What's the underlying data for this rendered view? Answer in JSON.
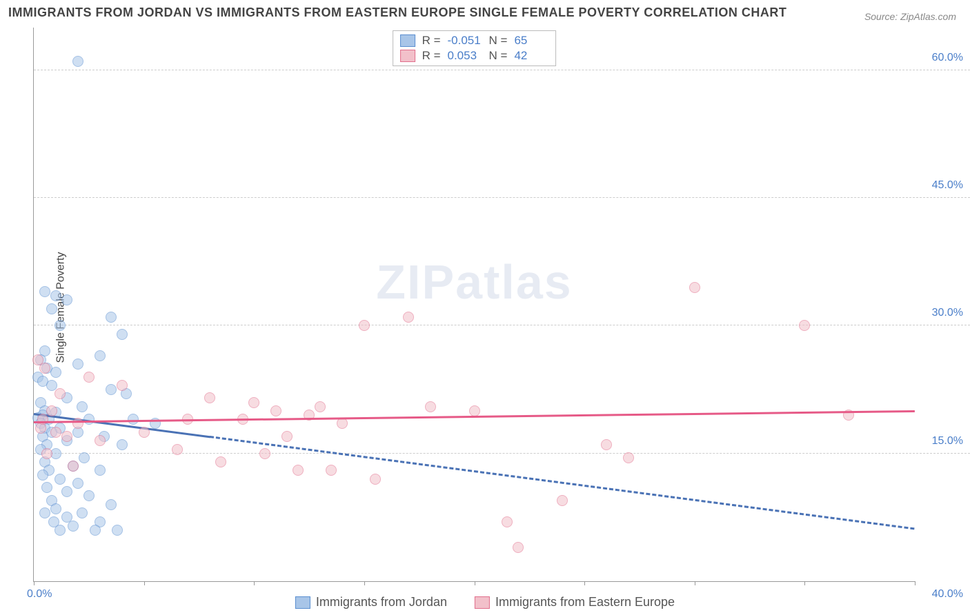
{
  "title": "IMMIGRANTS FROM JORDAN VS IMMIGRANTS FROM EASTERN EUROPE SINGLE FEMALE POVERTY CORRELATION CHART",
  "source": "Source: ZipAtlas.com",
  "ylabel": "Single Female Poverty",
  "watermark": "ZIPatlas",
  "chart": {
    "type": "scatter",
    "xlim": [
      0,
      40
    ],
    "ylim": [
      0,
      65
    ],
    "x_axis_labels": {
      "min": "0.0%",
      "max": "40.0%"
    },
    "y_grid": [
      {
        "val": 15,
        "label": "15.0%"
      },
      {
        "val": 30,
        "label": "30.0%"
      },
      {
        "val": 45,
        "label": "45.0%"
      },
      {
        "val": 60,
        "label": "60.0%"
      }
    ],
    "x_ticks": [
      0,
      5,
      10,
      15,
      20,
      25,
      30,
      35,
      40
    ],
    "background_color": "#ffffff",
    "grid_color": "#cccccc",
    "marker_radius": 8,
    "marker_opacity": 0.55,
    "series": [
      {
        "name": "Immigrants from Jordan",
        "color_fill": "#a8c5e8",
        "color_stroke": "#5b8fd0",
        "r_value": "-0.051",
        "n_value": "65",
        "trend": {
          "y_at_xmin": 19.5,
          "y_at_xmax": 6.0,
          "solid_until_x": 8,
          "color": "#4a72b5",
          "width": 3
        },
        "points": [
          [
            2.0,
            61.0
          ],
          [
            0.5,
            34.0
          ],
          [
            1.0,
            33.5
          ],
          [
            1.5,
            33.0
          ],
          [
            0.8,
            32.0
          ],
          [
            3.5,
            31.0
          ],
          [
            1.2,
            30.0
          ],
          [
            4.0,
            29.0
          ],
          [
            0.5,
            27.0
          ],
          [
            3.0,
            26.5
          ],
          [
            0.3,
            26.0
          ],
          [
            2.0,
            25.5
          ],
          [
            0.6,
            25.0
          ],
          [
            1.0,
            24.5
          ],
          [
            0.2,
            24.0
          ],
          [
            0.4,
            23.5
          ],
          [
            0.8,
            23.0
          ],
          [
            3.5,
            22.5
          ],
          [
            4.2,
            22.0
          ],
          [
            1.5,
            21.5
          ],
          [
            0.3,
            21.0
          ],
          [
            2.2,
            20.5
          ],
          [
            0.5,
            20.0
          ],
          [
            1.0,
            19.8
          ],
          [
            0.4,
            19.5
          ],
          [
            0.2,
            19.2
          ],
          [
            0.7,
            19.0
          ],
          [
            2.5,
            19.0
          ],
          [
            4.5,
            19.0
          ],
          [
            5.5,
            18.5
          ],
          [
            0.3,
            18.5
          ],
          [
            1.2,
            18.0
          ],
          [
            0.5,
            18.0
          ],
          [
            0.8,
            17.5
          ],
          [
            2.0,
            17.5
          ],
          [
            3.2,
            17.0
          ],
          [
            0.4,
            17.0
          ],
          [
            1.5,
            16.5
          ],
          [
            0.6,
            16.0
          ],
          [
            4.0,
            16.0
          ],
          [
            0.3,
            15.5
          ],
          [
            1.0,
            15.0
          ],
          [
            2.3,
            14.5
          ],
          [
            0.5,
            14.0
          ],
          [
            1.8,
            13.5
          ],
          [
            0.7,
            13.0
          ],
          [
            3.0,
            13.0
          ],
          [
            0.4,
            12.5
          ],
          [
            1.2,
            12.0
          ],
          [
            2.0,
            11.5
          ],
          [
            0.6,
            11.0
          ],
          [
            1.5,
            10.5
          ],
          [
            2.5,
            10.0
          ],
          [
            0.8,
            9.5
          ],
          [
            3.5,
            9.0
          ],
          [
            1.0,
            8.5
          ],
          [
            0.5,
            8.0
          ],
          [
            2.2,
            8.0
          ],
          [
            1.5,
            7.5
          ],
          [
            3.0,
            7.0
          ],
          [
            0.9,
            7.0
          ],
          [
            1.8,
            6.5
          ],
          [
            2.8,
            6.0
          ],
          [
            3.8,
            6.0
          ],
          [
            1.2,
            6.0
          ]
        ]
      },
      {
        "name": "Immigrants from Eastern Europe",
        "color_fill": "#f2c0ca",
        "color_stroke": "#e16f8c",
        "r_value": "0.053",
        "n_value": "42",
        "trend": {
          "y_at_xmin": 18.5,
          "y_at_xmax": 19.8,
          "solid_until_x": 40,
          "color": "#e65a87",
          "width": 3
        },
        "points": [
          [
            30.0,
            34.5
          ],
          [
            17.0,
            31.0
          ],
          [
            35.0,
            30.0
          ],
          [
            15.0,
            30.0
          ],
          [
            0.2,
            26.0
          ],
          [
            0.5,
            25.0
          ],
          [
            4.0,
            23.0
          ],
          [
            8.0,
            21.5
          ],
          [
            10.0,
            21.0
          ],
          [
            13.0,
            20.5
          ],
          [
            18.0,
            20.5
          ],
          [
            20.0,
            20.0
          ],
          [
            11.0,
            20.0
          ],
          [
            12.5,
            19.5
          ],
          [
            37.0,
            19.5
          ],
          [
            7.0,
            19.0
          ],
          [
            9.5,
            19.0
          ],
          [
            14.0,
            18.5
          ],
          [
            0.3,
            18.0
          ],
          [
            1.0,
            17.5
          ],
          [
            5.0,
            17.5
          ],
          [
            1.5,
            17.0
          ],
          [
            26.0,
            16.0
          ],
          [
            6.5,
            15.5
          ],
          [
            10.5,
            15.0
          ],
          [
            27.0,
            14.5
          ],
          [
            8.5,
            14.0
          ],
          [
            12.0,
            13.0
          ],
          [
            13.5,
            13.0
          ],
          [
            15.5,
            12.0
          ],
          [
            24.0,
            9.5
          ],
          [
            21.5,
            7.0
          ],
          [
            22.0,
            4.0
          ],
          [
            0.8,
            20.0
          ],
          [
            2.0,
            18.5
          ],
          [
            3.0,
            16.5
          ],
          [
            0.4,
            19.0
          ],
          [
            1.2,
            22.0
          ],
          [
            2.5,
            24.0
          ],
          [
            0.6,
            15.0
          ],
          [
            1.8,
            13.5
          ],
          [
            11.5,
            17.0
          ]
        ]
      }
    ]
  },
  "stats_box": {
    "swatch_blue": {
      "fill": "#a8c5e8",
      "stroke": "#5b8fd0"
    },
    "swatch_pink": {
      "fill": "#f2c0ca",
      "stroke": "#e16f8c"
    },
    "r_label": "R =",
    "n_label": "N ="
  },
  "legend": {
    "series1": "Immigrants from Jordan",
    "series2": "Immigrants from Eastern Europe"
  }
}
